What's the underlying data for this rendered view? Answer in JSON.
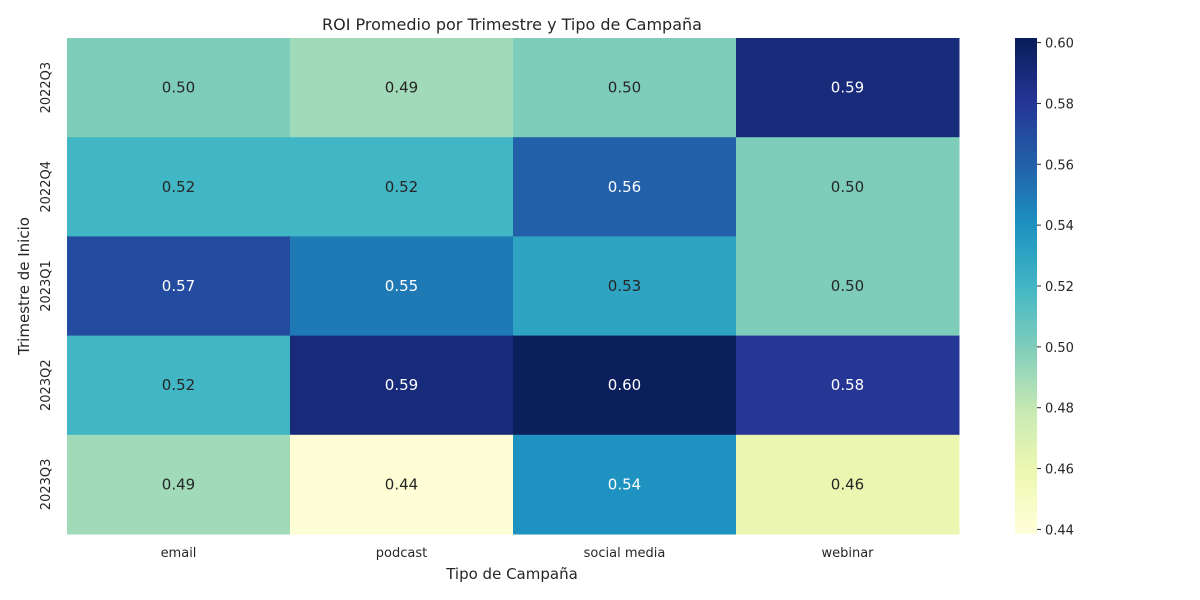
{
  "chart_data": {
    "type": "heatmap",
    "title": "ROI Promedio por Trimestre y Tipo de Campaña",
    "xlabel": "Tipo de Campaña",
    "ylabel": "Trimestre de Inicio",
    "x_categories": [
      "email",
      "podcast",
      "social media",
      "webinar"
    ],
    "y_categories": [
      "2022Q3",
      "2022Q4",
      "2023Q1",
      "2023Q2",
      "2023Q3"
    ],
    "values": [
      [
        0.5,
        0.49,
        0.5,
        0.59
      ],
      [
        0.52,
        0.52,
        0.56,
        0.5
      ],
      [
        0.57,
        0.55,
        0.53,
        0.5
      ],
      [
        0.52,
        0.59,
        0.6,
        0.58
      ],
      [
        0.49,
        0.44,
        0.54,
        0.46
      ]
    ],
    "cell_labels": [
      [
        "0.50",
        "0.49",
        "0.50",
        "0.59"
      ],
      [
        "0.52",
        "0.52",
        "0.56",
        "0.50"
      ],
      [
        "0.57",
        "0.55",
        "0.53",
        "0.50"
      ],
      [
        "0.52",
        "0.59",
        "0.60",
        "0.58"
      ],
      [
        "0.49",
        "0.44",
        "0.54",
        "0.46"
      ]
    ],
    "colormap": "YlGnBu",
    "colorbar": {
      "vmin": 0.4385,
      "vmax": 0.6015,
      "ticks": [
        0.44,
        0.46,
        0.48,
        0.5,
        0.52,
        0.54,
        0.56,
        0.58,
        0.6
      ],
      "tick_labels": [
        "0.44",
        "0.46",
        "0.48",
        "0.50",
        "0.52",
        "0.54",
        "0.56",
        "0.58",
        "0.60"
      ],
      "placement": "right"
    },
    "grid": false
  }
}
